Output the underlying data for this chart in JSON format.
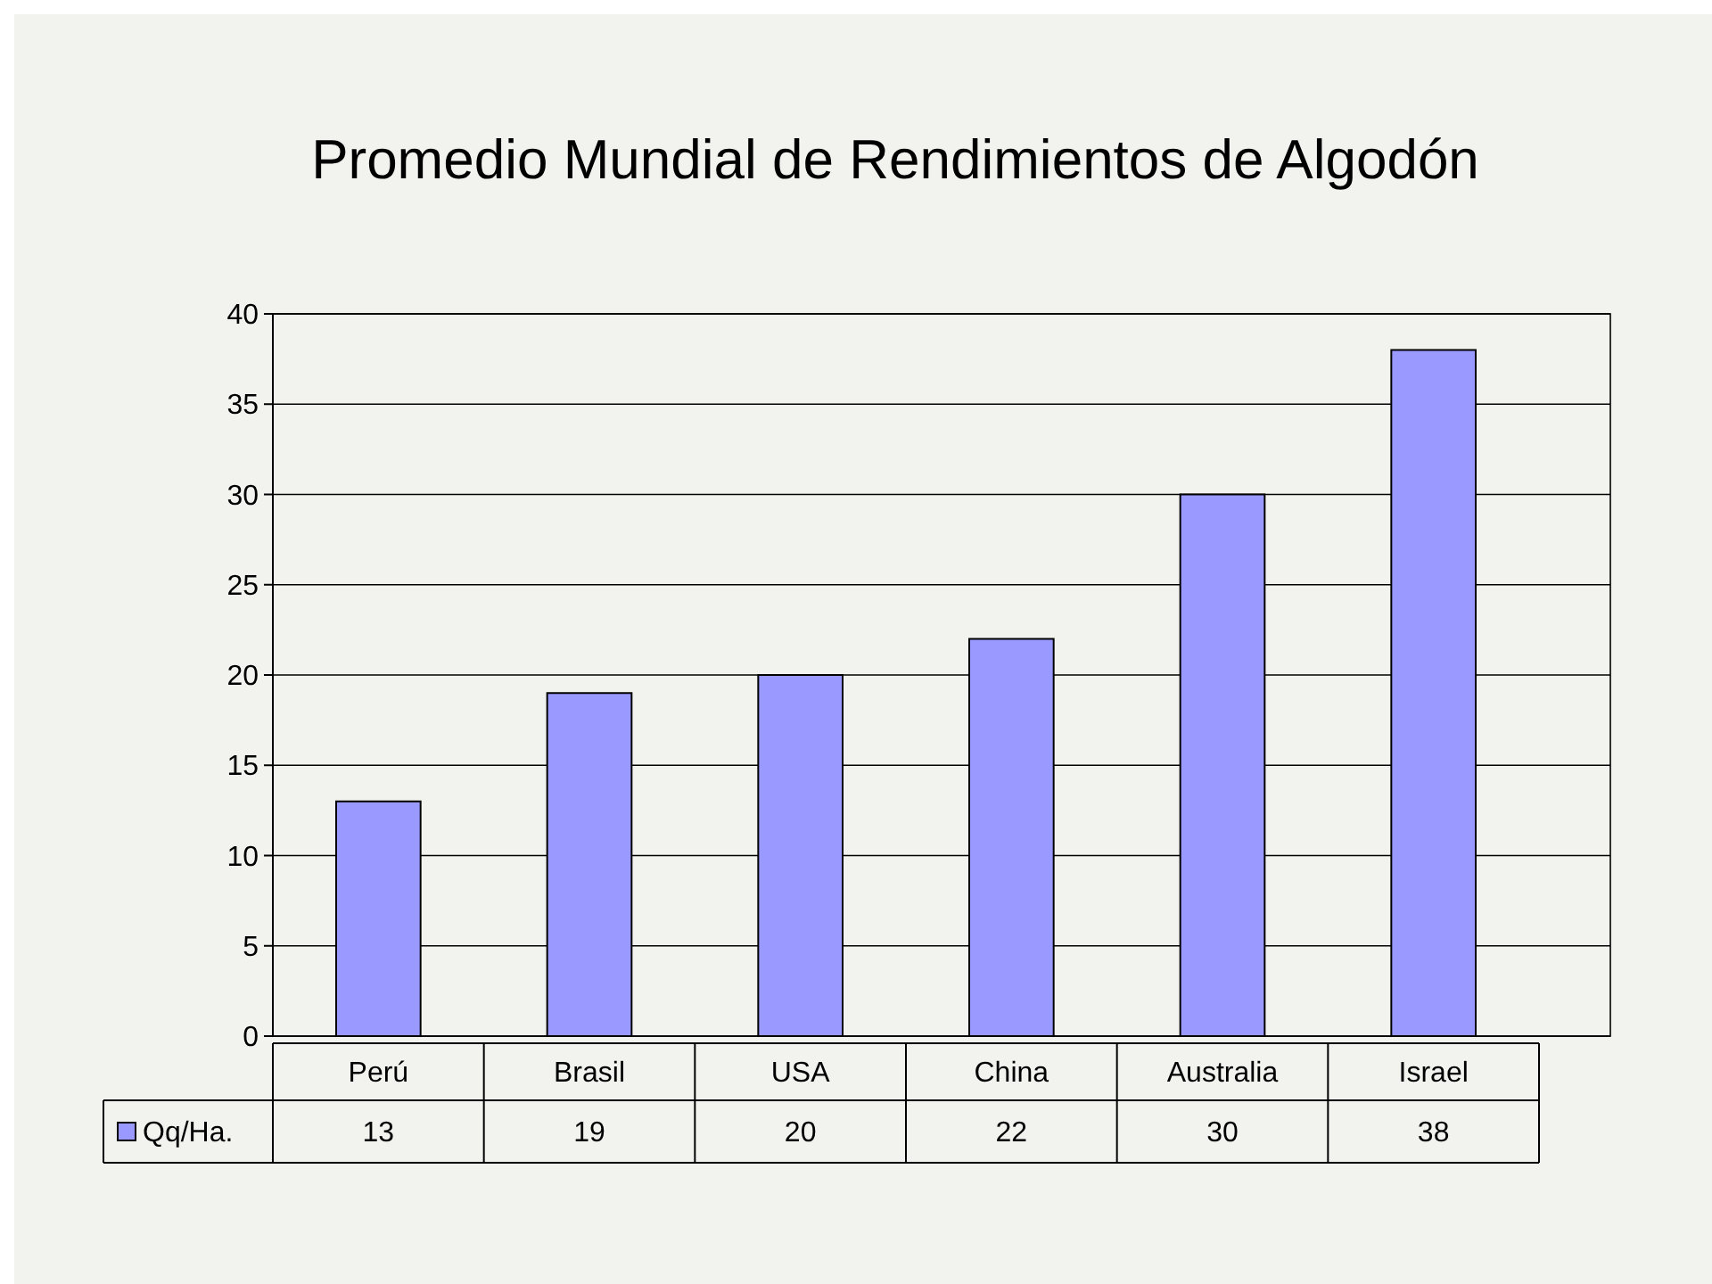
{
  "chart_data": {
    "type": "bar",
    "title": "Promedio Mundial de Rendimientos de Algodón",
    "categories": [
      "Perú",
      "Brasil",
      "USA",
      "China",
      "Australia",
      "Israel"
    ],
    "series": [
      {
        "name": "Qq/Ha.",
        "color": "#9999ff",
        "values": [
          13,
          19,
          20,
          22,
          30,
          38
        ]
      }
    ],
    "ylim": [
      0,
      40
    ],
    "yticks": [
      0,
      5,
      10,
      15,
      20,
      25,
      30,
      35,
      40
    ],
    "grid": "y",
    "data_labels": true,
    "legend": "bottom left"
  }
}
